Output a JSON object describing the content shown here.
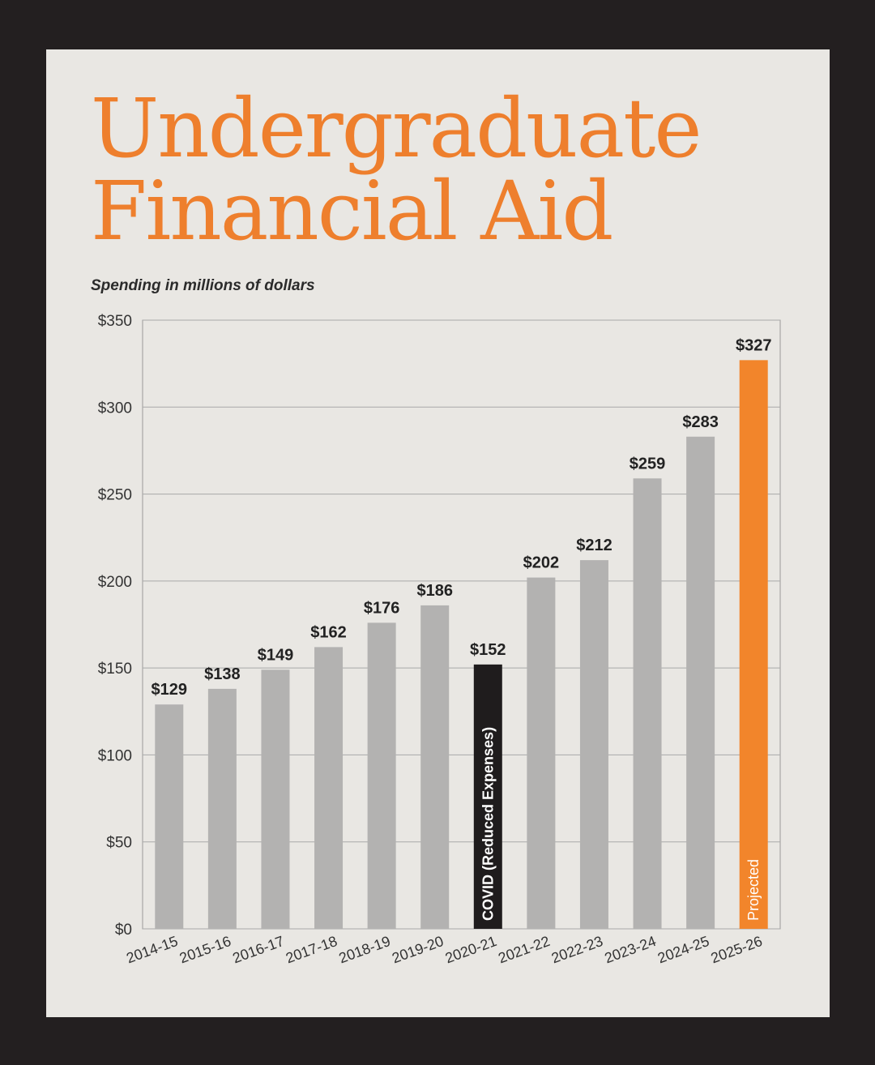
{
  "title_line1": "Undergraduate",
  "title_line2": "Financial Aid",
  "subtitle": "Spending in millions of dollars",
  "colors": {
    "title": "#ee7f2d",
    "bar": "#b3b2b1",
    "covid": "#1f1c1d",
    "projected": "#f2852b",
    "background": "#e9e7e3",
    "frame": "#231f20"
  },
  "chart_data": {
    "type": "bar",
    "categories": [
      "2014-15",
      "2015-16",
      "2016-17",
      "2017-18",
      "2018-19",
      "2019-20",
      "2020-21",
      "2021-22",
      "2022-23",
      "2023-24",
      "2024-25",
      "2025-26"
    ],
    "values": [
      129,
      138,
      149,
      162,
      176,
      186,
      152,
      202,
      212,
      259,
      283,
      327
    ],
    "value_labels": [
      "$129",
      "$138",
      "$149",
      "$162",
      "$176",
      "$186",
      "$152",
      "$202",
      "$212",
      "$259",
      "$283",
      "$327"
    ],
    "bar_styles": [
      "normal",
      "normal",
      "normal",
      "normal",
      "normal",
      "normal",
      "covid",
      "normal",
      "normal",
      "normal",
      "normal",
      "projected"
    ],
    "annotations": {
      "2020-21": "COVID (Reduced Expenses)",
      "2025-26": "Projected"
    },
    "ylim": [
      0,
      350
    ],
    "yticks": [
      0,
      50,
      100,
      150,
      200,
      250,
      300,
      350
    ],
    "ytick_labels": [
      "$0",
      "$50",
      "$100",
      "$150",
      "$200",
      "$250",
      "$300",
      "$350"
    ],
    "grid": true
  }
}
